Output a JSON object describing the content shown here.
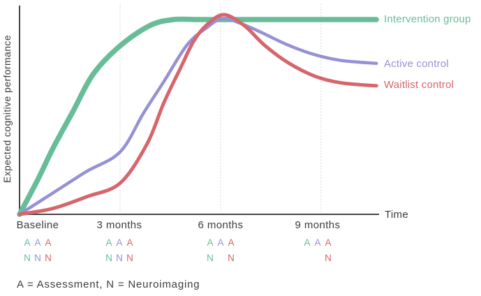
{
  "palette": {
    "green": "#68BD99",
    "purple": "#9691D4",
    "red": "#D6656C",
    "axis": "#454545",
    "text": "#3C3C3C",
    "grid": "#C9C9C9"
  },
  "chart_data": {
    "type": "line",
    "title": "",
    "xlabel": "Time",
    "ylabel": "Expected cognitive performance",
    "x_unit": "months",
    "x_ticks": [
      {
        "month": 0,
        "label": "Baseline"
      },
      {
        "month": 3,
        "label": "3 months"
      },
      {
        "month": 6,
        "label": "6 months"
      },
      {
        "month": 9,
        "label": "9 months"
      }
    ],
    "gridline_months": [
      3,
      6,
      9
    ],
    "y_axis_note": "schematic curve, no numeric y scale; values below are estimated 0-105 performance units",
    "ylim": [
      0,
      105
    ],
    "grid": "dotted vertical lines at 3, 6 and 9 months",
    "legend_position": "right of curve ends",
    "series": [
      {
        "name": "Intervention group",
        "color": "#68BD99",
        "stroke_width": 7.5,
        "points": [
          [
            0,
            0
          ],
          [
            0.55,
            18
          ],
          [
            1,
            34
          ],
          [
            1.6,
            53
          ],
          [
            2.2,
            72
          ],
          [
            3,
            86.5
          ],
          [
            3.9,
            97
          ],
          [
            4.6,
            100
          ],
          [
            5.3,
            100
          ],
          [
            6.5,
            100
          ],
          [
            8,
            100
          ],
          [
            9.5,
            100
          ],
          [
            10.65,
            100
          ]
        ]
      },
      {
        "name": "Active control",
        "color": "#9691D4",
        "stroke_width": 4.5,
        "points": [
          [
            0,
            0
          ],
          [
            1,
            11
          ],
          [
            2,
            22
          ],
          [
            3,
            32
          ],
          [
            3.7,
            52
          ],
          [
            4.3,
            68
          ],
          [
            5,
            87
          ],
          [
            5.6,
            96
          ],
          [
            6.05,
            100.5
          ],
          [
            6.6,
            98
          ],
          [
            7.2,
            93.5
          ],
          [
            8,
            87
          ],
          [
            8.8,
            82
          ],
          [
            9.6,
            79
          ],
          [
            10.65,
            77.5
          ]
        ]
      },
      {
        "name": "Waitlist control",
        "color": "#D6656C",
        "stroke_width": 5,
        "points": [
          [
            0,
            0
          ],
          [
            1,
            3
          ],
          [
            2,
            9
          ],
          [
            3,
            16
          ],
          [
            3.8,
            36
          ],
          [
            4.3,
            57
          ],
          [
            4.8,
            75
          ],
          [
            5.2,
            89
          ],
          [
            5.6,
            97.5
          ],
          [
            6.1,
            102.5
          ],
          [
            6.7,
            97
          ],
          [
            7.3,
            87
          ],
          [
            8,
            78
          ],
          [
            8.8,
            71
          ],
          [
            9.6,
            67.5
          ],
          [
            10.65,
            66
          ]
        ]
      }
    ]
  },
  "schedule": {
    "timepoints": [
      {
        "label": "Baseline",
        "assessment": [
          "A",
          "A",
          "A"
        ],
        "neuroimaging": [
          "N",
          "N",
          "N"
        ]
      },
      {
        "label": "3 months",
        "assessment": [
          "A",
          "A",
          "A"
        ],
        "neuroimaging": [
          "N",
          "N",
          "N"
        ]
      },
      {
        "label": "6 months",
        "assessment": [
          "A",
          "A",
          "A"
        ],
        "neuroimaging": [
          "N",
          null,
          "N"
        ]
      },
      {
        "label": "9 months",
        "assessment": [
          "A",
          "A",
          "A"
        ],
        "neuroimaging": [
          null,
          null,
          "N"
        ]
      }
    ]
  },
  "caption": {
    "text": "A = Assessment, N = Neuroimaging"
  }
}
